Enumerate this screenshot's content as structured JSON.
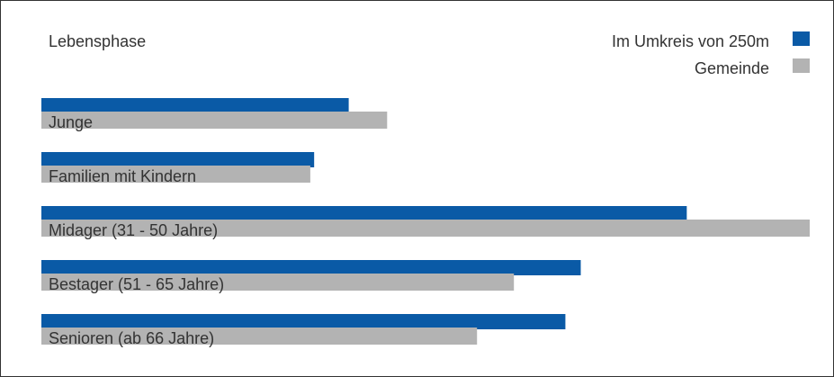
{
  "chart_data": {
    "type": "bar",
    "orientation": "horizontal",
    "title": "Lebensphase",
    "categories": [
      "Junge",
      "Familien mit Kindern",
      "Midager (31 - 50 Jahre)",
      "Bestager (51 - 65 Jahre)",
      "Senioren (ab 66 Jahre)"
    ],
    "series": [
      {
        "name": "Im Umkreis von 250m",
        "color": "#0a5aa6",
        "values": [
          40,
          35.5,
          84,
          70.2,
          68.2
        ]
      },
      {
        "name": "Gemeinde",
        "color": "#b3b3b3",
        "values": [
          45,
          35,
          100,
          61.5,
          56.7
        ]
      }
    ],
    "xlim": [
      0,
      100
    ],
    "grid": false,
    "legend_position": "top-right"
  }
}
